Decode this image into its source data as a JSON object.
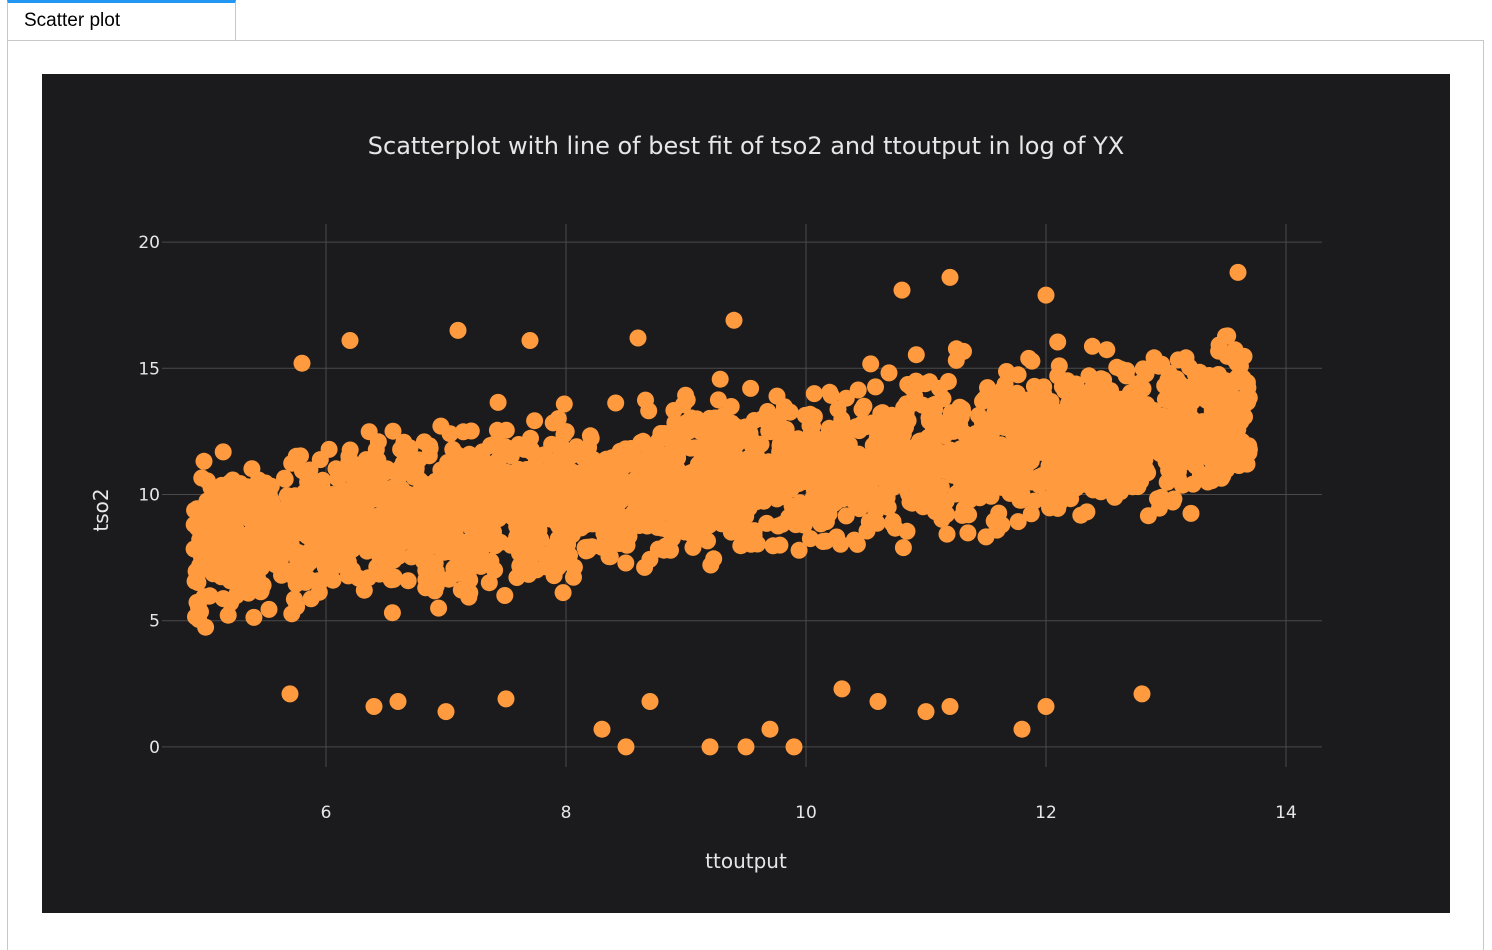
{
  "tabs": [
    {
      "label": "Scatter plot",
      "active": true
    }
  ],
  "colors": {
    "background": "#1b1b1d",
    "marker": "#ff9a3e",
    "grid": "#4a4a4a",
    "text": "#e6e6e6",
    "tab_accent": "#2196f3"
  },
  "chart_data": {
    "type": "scatter",
    "title": "Scatterplot with line of best fit of tso2 and ttoutput in log of YX",
    "xlabel": "ttoutput",
    "ylabel": "tso2",
    "xlim": [
      4.7,
      14.3
    ],
    "ylim": [
      -0.4,
      20.4
    ],
    "xticks": [
      6,
      8,
      10,
      12,
      14
    ],
    "yticks": [
      0,
      5,
      10,
      15,
      20
    ],
    "grid": true,
    "legend": "none",
    "dense_cloud": {
      "x_range": [
        4.9,
        13.7
      ],
      "trend_line": {
        "intercept": 5.2,
        "slope": 0.58
      },
      "spread": 2.0
    },
    "outliers": {
      "x": [
        5.8,
        6.2,
        7.1,
        7.7,
        8.6,
        9.4,
        10.8,
        11.2,
        12.0,
        13.6,
        5.0,
        5.7,
        6.6,
        6.4,
        7.0,
        7.5,
        8.3,
        8.5,
        8.7,
        9.2,
        9.5,
        9.7,
        9.9,
        10.3,
        10.6,
        11.0,
        11.2,
        11.8,
        12.0,
        12.8
      ],
      "y": [
        15.2,
        16.1,
        16.5,
        16.1,
        16.2,
        16.9,
        18.1,
        18.6,
        17.9,
        18.8,
        9.5,
        2.1,
        1.8,
        1.6,
        1.4,
        1.9,
        0.7,
        0.0,
        1.8,
        0.0,
        0.0,
        0.7,
        0.0,
        2.3,
        1.8,
        1.4,
        1.6,
        0.7,
        1.6,
        2.1
      ]
    }
  }
}
